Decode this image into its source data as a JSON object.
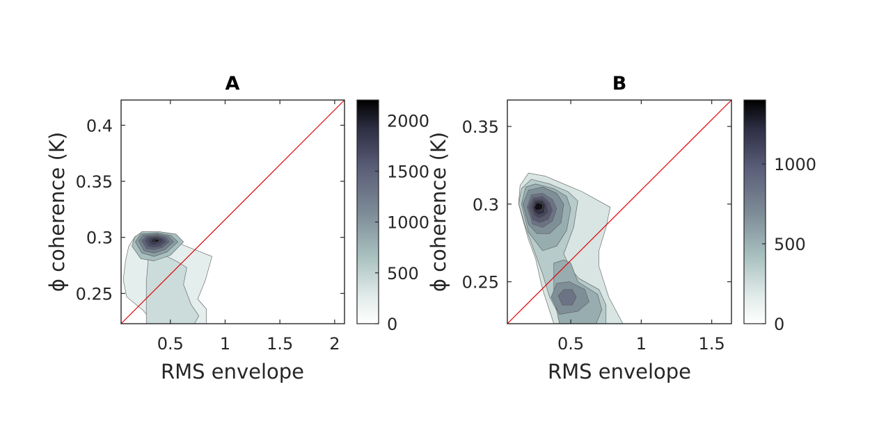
{
  "chart_data": [
    {
      "type": "contour",
      "title": "A",
      "xlabel": "RMS envelope",
      "ylabel": "ϕ coherence (K)",
      "xlim": [
        0.05,
        2.09
      ],
      "ylim": [
        0.223,
        0.4225
      ],
      "xticks": [
        {
          "value": 0.5,
          "label": "0.5"
        },
        {
          "value": 1,
          "label": "1"
        },
        {
          "value": 1.5,
          "label": "1.5"
        },
        {
          "value": 2,
          "label": "2"
        }
      ],
      "yticks": [
        {
          "value": 0.25,
          "label": "0.25"
        },
        {
          "value": 0.3,
          "label": "0.3"
        },
        {
          "value": 0.35,
          "label": "0.35"
        },
        {
          "value": 0.4,
          "label": "0.4"
        }
      ],
      "colorbar": {
        "lim": [
          0,
          2200
        ],
        "ticks": [
          {
            "value": 0,
            "label": "0"
          },
          {
            "value": 500,
            "label": "500"
          },
          {
            "value": 1000,
            "label": "1000"
          },
          {
            "value": 1500,
            "label": "1500"
          },
          {
            "value": 2000,
            "label": "2000"
          }
        ]
      },
      "identity_line": {
        "color": "#e00000"
      },
      "levels": [
        {
          "level": 200,
          "color": "#e4eeec",
          "points": [
            [
              0.1,
              0.247
            ],
            [
              0.07,
              0.262
            ],
            [
              0.09,
              0.279
            ],
            [
              0.12,
              0.292
            ],
            [
              0.18,
              0.301
            ],
            [
              0.3,
              0.302
            ],
            [
              0.47,
              0.3
            ],
            [
              0.62,
              0.293
            ],
            [
              0.88,
              0.283
            ],
            [
              0.82,
              0.262
            ],
            [
              0.75,
              0.245
            ],
            [
              0.83,
              0.236
            ],
            [
              0.83,
              0.223
            ],
            [
              0.52,
              0.223
            ],
            [
              0.35,
              0.223
            ],
            [
              0.25,
              0.235
            ]
          ]
        },
        {
          "level": 400,
          "color": "#cbdcda",
          "points": [
            [
              0.28,
              0.223
            ],
            [
              0.72,
              0.223
            ],
            [
              0.76,
              0.23
            ],
            [
              0.69,
              0.24
            ],
            [
              0.62,
              0.258
            ],
            [
              0.65,
              0.273
            ],
            [
              0.57,
              0.278
            ],
            [
              0.45,
              0.284
            ],
            [
              0.38,
              0.285
            ],
            [
              0.3,
              0.283
            ],
            [
              0.28,
              0.26
            ]
          ]
        },
        {
          "level": 600,
          "color": "#a8bfbf",
          "points": [
            [
              0.15,
              0.292
            ],
            [
              0.17,
              0.3
            ],
            [
              0.24,
              0.305
            ],
            [
              0.4,
              0.305
            ],
            [
              0.55,
              0.303
            ],
            [
              0.62,
              0.296
            ],
            [
              0.5,
              0.284
            ],
            [
              0.35,
              0.279
            ],
            [
              0.23,
              0.281
            ]
          ]
        },
        {
          "level": 800,
          "color": "#8a9fa4",
          "points": [
            [
              0.18,
              0.296
            ],
            [
              0.23,
              0.303
            ],
            [
              0.38,
              0.304
            ],
            [
              0.5,
              0.302
            ],
            [
              0.57,
              0.296
            ],
            [
              0.47,
              0.287
            ],
            [
              0.35,
              0.283
            ],
            [
              0.24,
              0.286
            ]
          ]
        },
        {
          "level": 1000,
          "color": "#72808d",
          "points": [
            [
              0.21,
              0.297
            ],
            [
              0.25,
              0.302
            ],
            [
              0.38,
              0.303
            ],
            [
              0.48,
              0.301
            ],
            [
              0.53,
              0.296
            ],
            [
              0.45,
              0.289
            ],
            [
              0.35,
              0.286
            ],
            [
              0.26,
              0.288
            ]
          ]
        },
        {
          "level": 1200,
          "color": "#5e6479",
          "points": [
            [
              0.24,
              0.297
            ],
            [
              0.28,
              0.301
            ],
            [
              0.38,
              0.302
            ],
            [
              0.46,
              0.3
            ],
            [
              0.49,
              0.296
            ],
            [
              0.43,
              0.291
            ],
            [
              0.35,
              0.289
            ],
            [
              0.28,
              0.29
            ]
          ]
        },
        {
          "level": 1400,
          "color": "#4c4e68",
          "points": [
            [
              0.27,
              0.297
            ],
            [
              0.3,
              0.3
            ],
            [
              0.38,
              0.301
            ],
            [
              0.44,
              0.299
            ],
            [
              0.46,
              0.296
            ],
            [
              0.41,
              0.292
            ],
            [
              0.35,
              0.291
            ],
            [
              0.3,
              0.292
            ]
          ]
        },
        {
          "level": 1600,
          "color": "#3a3b54",
          "points": [
            [
              0.3,
              0.297
            ],
            [
              0.33,
              0.3
            ],
            [
              0.38,
              0.3
            ],
            [
              0.42,
              0.299
            ],
            [
              0.43,
              0.296
            ],
            [
              0.39,
              0.294
            ],
            [
              0.35,
              0.293
            ],
            [
              0.32,
              0.294
            ]
          ]
        },
        {
          "level": 1800,
          "color": "#272837",
          "points": [
            [
              0.32,
              0.297
            ],
            [
              0.35,
              0.299
            ],
            [
              0.39,
              0.299
            ],
            [
              0.41,
              0.297
            ],
            [
              0.38,
              0.295
            ],
            [
              0.35,
              0.295
            ]
          ]
        },
        {
          "level": 2000,
          "color": "#0e0e14",
          "points": [
            [
              0.35,
              0.297
            ],
            [
              0.37,
              0.298
            ],
            [
              0.39,
              0.298
            ],
            [
              0.4,
              0.297
            ],
            [
              0.38,
              0.296
            ],
            [
              0.36,
              0.296
            ]
          ]
        }
      ]
    },
    {
      "type": "contour",
      "title": "B",
      "xlabel": "RMS envelope",
      "ylabel": "ϕ coherence (K)",
      "xlim": [
        0.05,
        1.64
      ],
      "ylim": [
        0.223,
        0.367
      ],
      "xticks": [
        {
          "value": 0.5,
          "label": "0.5"
        },
        {
          "value": 1,
          "label": "1"
        },
        {
          "value": 1.5,
          "label": "1.5"
        }
      ],
      "yticks": [
        {
          "value": 0.25,
          "label": "0.25"
        },
        {
          "value": 0.3,
          "label": "0.3"
        },
        {
          "value": 0.35,
          "label": "0.35"
        }
      ],
      "colorbar": {
        "lim": [
          0,
          1400
        ],
        "ticks": [
          {
            "value": 0,
            "label": "0"
          },
          {
            "value": 500,
            "label": "500"
          },
          {
            "value": 1000,
            "label": "1000"
          }
        ]
      },
      "identity_line": {
        "color": "#e00000"
      },
      "levels": [
        {
          "level": 150,
          "color": "#d8e5e3",
          "points": [
            [
              0.13,
              0.3
            ],
            [
              0.14,
              0.312
            ],
            [
              0.2,
              0.32
            ],
            [
              0.32,
              0.318
            ],
            [
              0.45,
              0.313
            ],
            [
              0.58,
              0.308
            ],
            [
              0.78,
              0.298
            ],
            [
              0.75,
              0.285
            ],
            [
              0.7,
              0.27
            ],
            [
              0.7,
              0.26
            ],
            [
              0.77,
              0.24
            ],
            [
              0.87,
              0.223
            ],
            [
              0.52,
              0.223
            ],
            [
              0.38,
              0.223
            ],
            [
              0.3,
              0.245
            ],
            [
              0.25,
              0.265
            ],
            [
              0.2,
              0.277
            ],
            [
              0.16,
              0.29
            ]
          ]
        },
        {
          "level": 300,
          "color": "#b6cbca",
          "points": [
            [
              0.13,
              0.3
            ],
            [
              0.15,
              0.31
            ],
            [
              0.22,
              0.316
            ],
            [
              0.35,
              0.313
            ],
            [
              0.48,
              0.308
            ],
            [
              0.55,
              0.302
            ],
            [
              0.52,
              0.285
            ],
            [
              0.45,
              0.268
            ],
            [
              0.5,
              0.258
            ],
            [
              0.56,
              0.252
            ],
            [
              0.7,
              0.245
            ],
            [
              0.75,
              0.235
            ],
            [
              0.75,
              0.223
            ],
            [
              0.45,
              0.223
            ],
            [
              0.35,
              0.24
            ],
            [
              0.3,
              0.255
            ],
            [
              0.24,
              0.27
            ],
            [
              0.18,
              0.285
            ]
          ]
        },
        {
          "level": 450,
          "color": "#98adb0",
          "points": [
            [
              0.15,
              0.3
            ],
            [
              0.18,
              0.311
            ],
            [
              0.25,
              0.313
            ],
            [
              0.38,
              0.31
            ],
            [
              0.47,
              0.305
            ],
            [
              0.5,
              0.297
            ],
            [
              0.47,
              0.283
            ],
            [
              0.4,
              0.273
            ],
            [
              0.3,
              0.27
            ],
            [
              0.2,
              0.282
            ]
          ]
        },
        {
          "level": 450,
          "color": "#98adb0",
          "points": [
            [
              0.38,
              0.262
            ],
            [
              0.45,
              0.264
            ],
            [
              0.5,
              0.262
            ],
            [
              0.55,
              0.25
            ],
            [
              0.69,
              0.242
            ],
            [
              0.72,
              0.232
            ],
            [
              0.68,
              0.223
            ],
            [
              0.42,
              0.223
            ],
            [
              0.38,
              0.24
            ]
          ]
        },
        {
          "level": 600,
          "color": "#7f8f97",
          "points": [
            [
              0.16,
              0.3
            ],
            [
              0.2,
              0.309
            ],
            [
              0.3,
              0.311
            ],
            [
              0.4,
              0.307
            ],
            [
              0.45,
              0.3
            ],
            [
              0.43,
              0.288
            ],
            [
              0.35,
              0.281
            ],
            [
              0.26,
              0.281
            ],
            [
              0.2,
              0.287
            ]
          ]
        },
        {
          "level": 600,
          "color": "#7f8f97",
          "points": [
            [
              0.36,
              0.24
            ],
            [
              0.4,
              0.249
            ],
            [
              0.49,
              0.25
            ],
            [
              0.6,
              0.245
            ],
            [
              0.63,
              0.237
            ],
            [
              0.55,
              0.231
            ],
            [
              0.42,
              0.229
            ]
          ]
        },
        {
          "level": 750,
          "color": "#6b7384",
          "points": [
            [
              0.19,
              0.298
            ],
            [
              0.22,
              0.306
            ],
            [
              0.3,
              0.307
            ],
            [
              0.37,
              0.303
            ],
            [
              0.4,
              0.297
            ],
            [
              0.37,
              0.289
            ],
            [
              0.3,
              0.285
            ],
            [
              0.23,
              0.287
            ]
          ]
        },
        {
          "level": 750,
          "color": "#6b7384",
          "points": [
            [
              0.41,
              0.241
            ],
            [
              0.45,
              0.245
            ],
            [
              0.51,
              0.245
            ],
            [
              0.54,
              0.24
            ],
            [
              0.51,
              0.235
            ],
            [
              0.44,
              0.235
            ]
          ]
        },
        {
          "level": 900,
          "color": "#58596f",
          "points": [
            [
              0.2,
              0.298
            ],
            [
              0.23,
              0.304
            ],
            [
              0.3,
              0.305
            ],
            [
              0.35,
              0.301
            ],
            [
              0.37,
              0.296
            ],
            [
              0.34,
              0.29
            ],
            [
              0.28,
              0.288
            ],
            [
              0.23,
              0.29
            ]
          ]
        },
        {
          "level": 1050,
          "color": "#45465c",
          "points": [
            [
              0.22,
              0.298
            ],
            [
              0.24,
              0.303
            ],
            [
              0.3,
              0.303
            ],
            [
              0.33,
              0.3
            ],
            [
              0.34,
              0.295
            ],
            [
              0.31,
              0.292
            ],
            [
              0.27,
              0.291
            ],
            [
              0.24,
              0.293
            ]
          ]
        },
        {
          "level": 1200,
          "color": "#2f3042",
          "points": [
            [
              0.23,
              0.298
            ],
            [
              0.25,
              0.302
            ],
            [
              0.3,
              0.302
            ],
            [
              0.32,
              0.299
            ],
            [
              0.31,
              0.294
            ],
            [
              0.27,
              0.293
            ],
            [
              0.24,
              0.295
            ]
          ]
        },
        {
          "level": 1350,
          "color": "#101016",
          "points": [
            [
              0.24,
              0.298
            ],
            [
              0.26,
              0.301
            ],
            [
              0.3,
              0.3
            ],
            [
              0.3,
              0.297
            ],
            [
              0.27,
              0.296
            ],
            [
              0.25,
              0.296
            ]
          ]
        }
      ]
    }
  ]
}
